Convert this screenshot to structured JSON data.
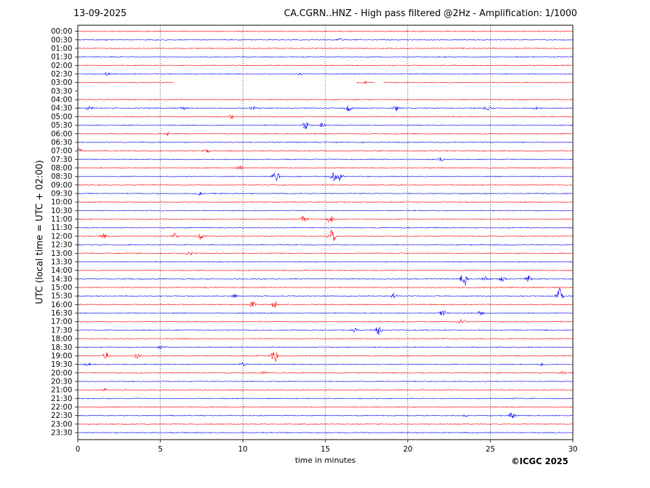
{
  "header": {
    "date": "13-09-2025",
    "station": "CA.CGRN..HNZ - High pass filtered @2Hz - Amplification: 1/1000"
  },
  "footer": {
    "copyright": "©ICGC 2025"
  },
  "chart_data": {
    "type": "line",
    "subtype": "helicorder",
    "xlabel": "time in minutes",
    "ylabel": "UTC (local time = UTC + 02:00)",
    "xlim": [
      0,
      30
    ],
    "x_ticks": [
      0,
      5,
      10,
      15,
      20,
      25,
      30
    ],
    "grid": "vertical dotted lines at 5, 10, 15, 20, 25",
    "colors": [
      "#ff0000",
      "#0000ff"
    ],
    "rows": [
      "00:00",
      "00:30",
      "01:00",
      "01:30",
      "02:00",
      "02:30",
      "03:00",
      "03:30",
      "04:00",
      "04:30",
      "05:00",
      "05:30",
      "06:00",
      "06:30",
      "07:00",
      "07:30",
      "08:00",
      "08:30",
      "09:00",
      "09:30",
      "10:00",
      "10:30",
      "11:00",
      "11:30",
      "12:00",
      "12:30",
      "13:00",
      "13:30",
      "14:00",
      "14:30",
      "15:00",
      "15:30",
      "16:00",
      "16:30",
      "17:00",
      "17:30",
      "18:00",
      "18:30",
      "19:00",
      "19:30",
      "20:00",
      "20:30",
      "21:00",
      "21:30",
      "22:00",
      "22:30",
      "23:00",
      "23:30"
    ],
    "gaps": [
      {
        "row": "03:00",
        "from_min": 5.8,
        "to_min": 16.9
      },
      {
        "row": "03:00",
        "from_min": 18.0,
        "to_min": 18.5
      },
      {
        "row": "03:30",
        "from_min": 0,
        "to_min": 30
      }
    ],
    "events": [
      {
        "row": "00:30",
        "min": 15.9,
        "amp": 1.5
      },
      {
        "row": "02:30",
        "min": 1.8,
        "amp": 2
      },
      {
        "row": "02:30",
        "min": 13.5,
        "amp": 1.5
      },
      {
        "row": "03:00",
        "min": 17.4,
        "amp": 1.5
      },
      {
        "row": "04:30",
        "min": 0.7,
        "amp": 3
      },
      {
        "row": "04:30",
        "min": 6.4,
        "amp": 3
      },
      {
        "row": "04:30",
        "min": 10.6,
        "amp": 3
      },
      {
        "row": "04:30",
        "min": 16.4,
        "amp": 4
      },
      {
        "row": "04:30",
        "min": 19.3,
        "amp": 4
      },
      {
        "row": "04:30",
        "min": 24.8,
        "amp": 3
      },
      {
        "row": "04:30",
        "min": 27.8,
        "amp": 2
      },
      {
        "row": "05:00",
        "min": 9.3,
        "amp": 3
      },
      {
        "row": "05:30",
        "min": 13.8,
        "amp": 6
      },
      {
        "row": "05:30",
        "min": 14.8,
        "amp": 3
      },
      {
        "row": "06:00",
        "min": 5.4,
        "amp": 2
      },
      {
        "row": "07:00",
        "min": 0.1,
        "amp": 3
      },
      {
        "row": "07:00",
        "min": 7.8,
        "amp": 2.5
      },
      {
        "row": "07:30",
        "min": 22.0,
        "amp": 2.5
      },
      {
        "row": "08:00",
        "min": 9.8,
        "amp": 3
      },
      {
        "row": "08:30",
        "min": 12.0,
        "amp": 10
      },
      {
        "row": "08:30",
        "min": 15.5,
        "amp": 6
      },
      {
        "row": "08:30",
        "min": 15.9,
        "amp": 6
      },
      {
        "row": "09:30",
        "min": 7.4,
        "amp": 2
      },
      {
        "row": "11:00",
        "min": 13.7,
        "amp": 5
      },
      {
        "row": "11:00",
        "min": 15.3,
        "amp": 6
      },
      {
        "row": "12:00",
        "min": 1.6,
        "amp": 4
      },
      {
        "row": "12:00",
        "min": 5.9,
        "amp": 4
      },
      {
        "row": "12:00",
        "min": 7.4,
        "amp": 4
      },
      {
        "row": "12:00",
        "min": 15.4,
        "amp": 10
      },
      {
        "row": "13:00",
        "min": 6.8,
        "amp": 2.5
      },
      {
        "row": "14:30",
        "min": 23.4,
        "amp": 12
      },
      {
        "row": "14:30",
        "min": 24.7,
        "amp": 3
      },
      {
        "row": "14:30",
        "min": 25.7,
        "amp": 4
      },
      {
        "row": "14:30",
        "min": 27.3,
        "amp": 4
      },
      {
        "row": "15:30",
        "min": 9.5,
        "amp": 3
      },
      {
        "row": "15:30",
        "min": 19.2,
        "amp": 4
      },
      {
        "row": "15:30",
        "min": 29.2,
        "amp": 12
      },
      {
        "row": "16:00",
        "min": 10.6,
        "amp": 4
      },
      {
        "row": "16:00",
        "min": 11.9,
        "amp": 5
      },
      {
        "row": "16:30",
        "min": 22.1,
        "amp": 5
      },
      {
        "row": "16:30",
        "min": 24.4,
        "amp": 3
      },
      {
        "row": "17:00",
        "min": 23.3,
        "amp": 4
      },
      {
        "row": "17:30",
        "min": 16.8,
        "amp": 3
      },
      {
        "row": "17:30",
        "min": 18.2,
        "amp": 7
      },
      {
        "row": "18:30",
        "min": 5.0,
        "amp": 2
      },
      {
        "row": "19:00",
        "min": 1.7,
        "amp": 5
      },
      {
        "row": "19:00",
        "min": 3.6,
        "amp": 4
      },
      {
        "row": "19:00",
        "min": 11.9,
        "amp": 11
      },
      {
        "row": "19:30",
        "min": 0.6,
        "amp": 2
      },
      {
        "row": "19:30",
        "min": 10.0,
        "amp": 2
      },
      {
        "row": "19:30",
        "min": 28.1,
        "amp": 2
      },
      {
        "row": "20:00",
        "min": 11.3,
        "amp": 2
      },
      {
        "row": "20:00",
        "min": 29.4,
        "amp": 2
      },
      {
        "row": "21:00",
        "min": 1.6,
        "amp": 2
      },
      {
        "row": "22:30",
        "min": 23.5,
        "amp": 2
      },
      {
        "row": "22:30",
        "min": 26.3,
        "amp": 4
      }
    ]
  }
}
